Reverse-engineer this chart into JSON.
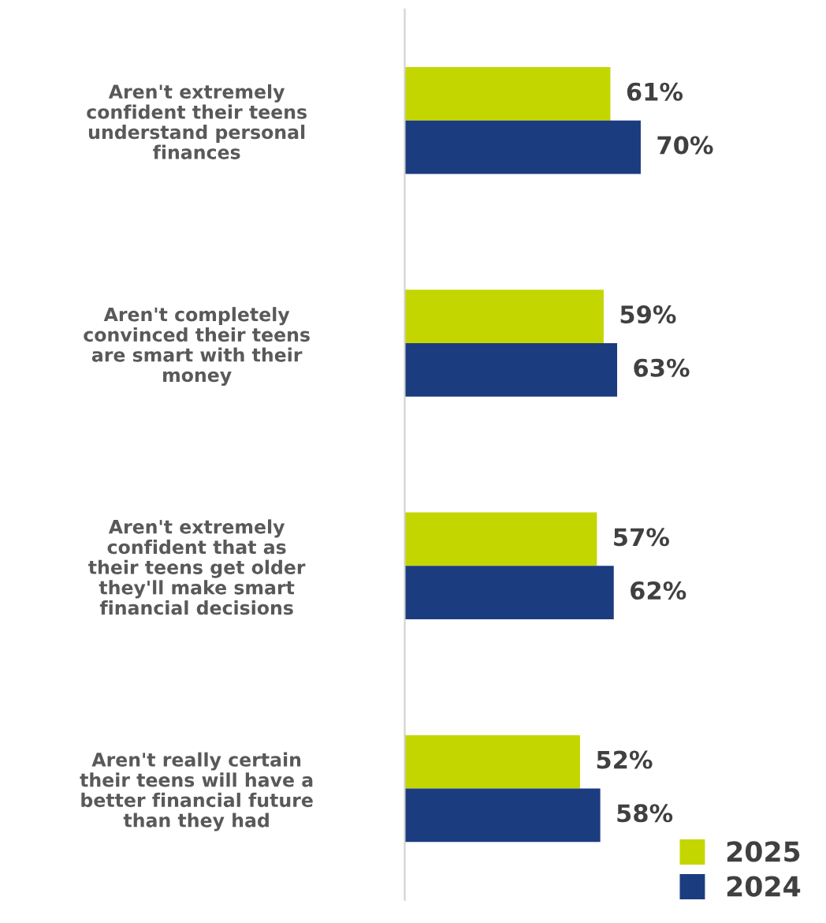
{
  "chart_data": {
    "type": "bar",
    "orientation": "horizontal",
    "categories": [
      "Aren't extremely\nconfident their teens\nunderstand personal\nfinances",
      "Aren't completely\nconvinced their teens\nare smart with their\nmoney",
      "Aren't extremely\nconfident that as\ntheir teens get older\nthey'll make smart\nfinancial decisions",
      "Aren't really certain\ntheir teens will have a\nbetter financial future\nthan they had"
    ],
    "series": [
      {
        "name": "2025",
        "color": "#c4d600",
        "values": [
          61,
          59,
          57,
          52
        ],
        "value_labels": [
          "61%",
          "59%",
          "57%",
          "52%"
        ]
      },
      {
        "name": "2024",
        "color": "#1c3c80",
        "values": [
          70,
          63,
          62,
          58
        ],
        "value_labels": [
          "70%",
          "63%",
          "62%",
          "58%"
        ]
      }
    ],
    "tick_labels": "y",
    "grid": false,
    "legend": "bottom right"
  }
}
